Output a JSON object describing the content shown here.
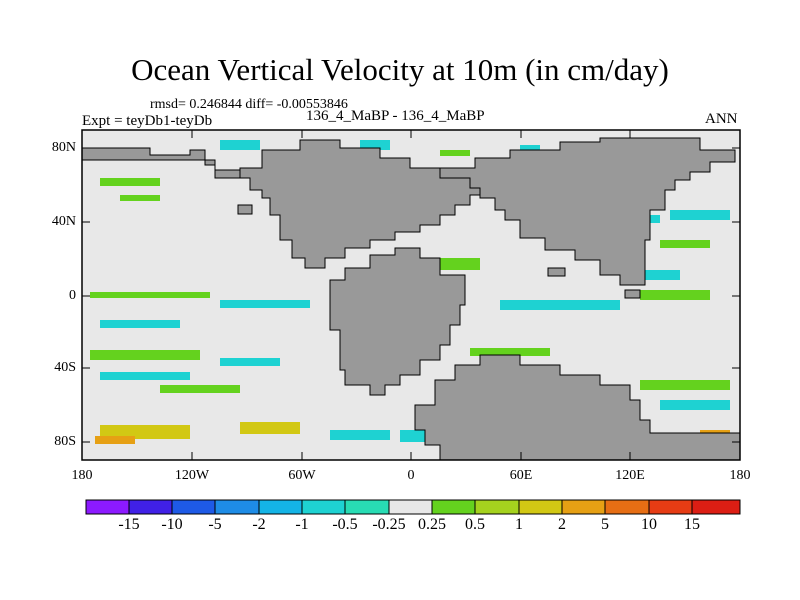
{
  "map": {
    "title": "Ocean Vertical Velocity at 10m (in cm/day)",
    "stats": "rmsd= 0.246844 diff= -0.00553846",
    "experiment": "Expt = teyDb1-teyDb",
    "case": "136_4_MaBP - 136_4_MaBP",
    "season": "ANN",
    "lat_ticks": [
      "80N",
      "40N",
      "0",
      "40S",
      "80S"
    ],
    "lon_ticks": [
      "180",
      "120W",
      "60W",
      "0",
      "60E",
      "120E",
      "180"
    ],
    "colors": {
      "land": "#999999",
      "ocean_neutral": "#e8e8e8",
      "frame": "#000000"
    }
  },
  "colorbar": {
    "labels": [
      "-15",
      "-10",
      "-5",
      "-2",
      "-1",
      "-0.5",
      "-0.25",
      "0.25",
      "0.5",
      "1",
      "2",
      "5",
      "10",
      "15"
    ],
    "colors": [
      "#8c1aff",
      "#4020e6",
      "#1e5ae6",
      "#1e8ce6",
      "#14b4e6",
      "#1ed2d2",
      "#28dcb4",
      "#e8e8e8",
      "#64d21e",
      "#a5d21e",
      "#d2c814",
      "#e6a014",
      "#e66e14",
      "#e63c14",
      "#dc1e14"
    ]
  }
}
